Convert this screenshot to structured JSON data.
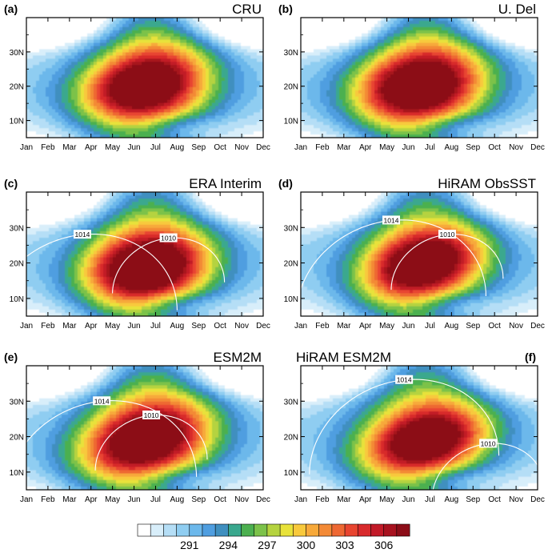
{
  "figure": {
    "description_note": "",
    "month_labels": [
      "Jan",
      "Feb",
      "Mar",
      "Apr",
      "May",
      "Jun",
      "Jul",
      "Aug",
      "Sep",
      "Oct",
      "Nov",
      "Dec"
    ],
    "lat_labels": [
      "10N",
      "20N",
      "30N"
    ],
    "colorbar": {
      "tick_labels": [
        "291",
        "294",
        "297",
        "300",
        "303",
        "306"
      ],
      "tick_values": [
        291,
        294,
        297,
        300,
        303,
        306
      ],
      "min": 288,
      "max": 309,
      "step": 1,
      "colors": [
        "#ffffff",
        "#d8eefa",
        "#b5def6",
        "#8fcdf1",
        "#6cb8eb",
        "#4f9ee0",
        "#3f8fbf",
        "#3aa88e",
        "#4cb050",
        "#7cc24a",
        "#b5d33f",
        "#e8e23a",
        "#f8c93c",
        "#f7a93a",
        "#f38a36",
        "#ee6833",
        "#e84530",
        "#d82a2c",
        "#c21a28",
        "#a8121f",
        "#8c0d18"
      ]
    },
    "palette": {
      "contour": "#ffffff",
      "frame": "#000000"
    }
  },
  "chart_data": [
    {
      "type": "heatmap",
      "panel_label": "(a)",
      "title": "CRU",
      "ylim": [
        5,
        40
      ],
      "xlim": [
        0,
        11
      ],
      "centers": [
        {
          "month": 5.5,
          "lat": 20,
          "a": 13
        },
        {
          "month": 4,
          "lat": 17,
          "a": 3
        },
        {
          "month": 6.5,
          "lat": 27,
          "a": 2
        }
      ],
      "spread": 1.0,
      "tilt": 0.25,
      "contours": []
    },
    {
      "type": "heatmap",
      "panel_label": "(b)",
      "title": "U. Del",
      "ylim": [
        5,
        40
      ],
      "xlim": [
        0,
        11
      ],
      "centers": [
        {
          "month": 5.5,
          "lat": 20,
          "a": 13
        },
        {
          "month": 4.2,
          "lat": 17,
          "a": 3
        },
        {
          "month": 6.2,
          "lat": 26,
          "a": 2
        }
      ],
      "spread": 1.05,
      "tilt": 0.25,
      "contours": []
    },
    {
      "type": "heatmap",
      "panel_label": "(c)",
      "title": "ERA Interim",
      "ylim": [
        5,
        40
      ],
      "xlim": [
        0,
        11
      ],
      "centers": [
        {
          "month": 5.5,
          "lat": 19,
          "a": 13
        },
        {
          "month": 4.5,
          "lat": 15,
          "a": 3
        },
        {
          "month": 6.5,
          "lat": 21,
          "a": 3
        }
      ],
      "spread": 1.0,
      "tilt": 0.2,
      "contours": [
        {
          "label": "1014",
          "label_month": 2.6,
          "label_lat": 28
        },
        {
          "label": "1010",
          "label_month": 6.6,
          "label_lat": 27
        }
      ]
    },
    {
      "type": "heatmap",
      "panel_label": "(d)",
      "title": "HiRAM ObsSST",
      "ylim": [
        5,
        40
      ],
      "xlim": [
        0,
        11
      ],
      "centers": [
        {
          "month": 5.6,
          "lat": 20,
          "a": 12
        },
        {
          "month": 4.3,
          "lat": 15,
          "a": 3
        },
        {
          "month": 6.8,
          "lat": 23,
          "a": 3
        }
      ],
      "spread": 0.95,
      "tilt": 0.3,
      "contours": [
        {
          "label": "1014",
          "label_month": 4.2,
          "label_lat": 32
        },
        {
          "label": "1010",
          "label_month": 6.8,
          "label_lat": 28
        }
      ]
    },
    {
      "type": "heatmap",
      "panel_label": "(e)",
      "title": "ESM2M",
      "ylim": [
        5,
        40
      ],
      "xlim": [
        0,
        11
      ],
      "centers": [
        {
          "month": 5.5,
          "lat": 19,
          "a": 12
        },
        {
          "month": 3.5,
          "lat": 14,
          "a": 3
        },
        {
          "month": 6.5,
          "lat": 23,
          "a": 3
        }
      ],
      "spread": 1.05,
      "tilt": 0.35,
      "contours": [
        {
          "label": "1014",
          "label_month": 3.5,
          "label_lat": 30
        },
        {
          "label": "1010",
          "label_month": 5.8,
          "label_lat": 26
        }
      ]
    },
    {
      "type": "heatmap",
      "panel_label": "(f)",
      "title": "HiRAM ESM2M",
      "ylim": [
        5,
        40
      ],
      "xlim": [
        0,
        11
      ],
      "centers": [
        {
          "month": 5.8,
          "lat": 19,
          "a": 12
        },
        {
          "month": 3.6,
          "lat": 14,
          "a": 3
        },
        {
          "month": 7.0,
          "lat": 22,
          "a": 3
        }
      ],
      "spread": 0.95,
      "tilt": 0.3,
      "contours": [
        {
          "label": "1014",
          "label_month": 4.8,
          "label_lat": 36
        },
        {
          "label": "1010",
          "label_month": 8.7,
          "label_lat": 18
        }
      ]
    }
  ]
}
